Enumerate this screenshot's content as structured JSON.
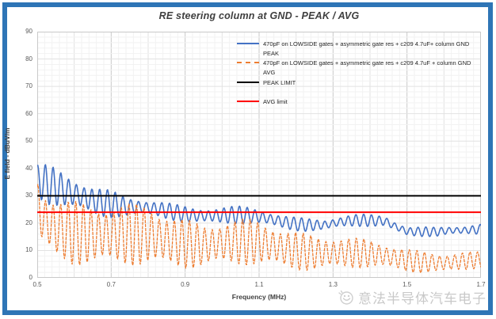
{
  "window": {
    "title": "RE steering column at GND - PEAK / AVG"
  },
  "watermark": {
    "text": "意法半导体汽车电子",
    "logo": "smiley-face-icon",
    "color": "#c9c9c9"
  },
  "colors": {
    "frame_border": "#2E75B6",
    "peak_series": "#4472C4",
    "avg_series": "#ED7D31",
    "peak_limit": "#000000",
    "avg_limit": "#FF0000",
    "grid_minor": "#F2F2F2",
    "grid_major": "#E2E2E2",
    "grid_labeled": "#C9C9C9",
    "plot_border": "#C9C9C9",
    "tick_text": "#595959",
    "title_text": "#3f3f3f"
  },
  "chart_data": {
    "type": "line",
    "title": "RE steering column at GND - PEAK / AVG",
    "xlabel": "Frequency (MHz)",
    "ylabel": "E field - dBuV/m",
    "xlim": [
      0.5,
      1.7
    ],
    "ylim": [
      0,
      90
    ],
    "x_ticks": [
      0.5,
      0.7,
      0.9,
      1.1,
      1.3,
      1.5,
      1.7
    ],
    "y_ticks": [
      0,
      10,
      20,
      30,
      40,
      50,
      60,
      70,
      80,
      90
    ],
    "grid": {
      "minor_x_step": 0.02,
      "major_x_step": 0.1,
      "labeled_x_step": 0.2,
      "minor_y_step": 2,
      "major_y_step": 10,
      "grid_on": true
    },
    "legend_position": "top-right-inside",
    "limits": [
      {
        "name": "PEAK LIMIT",
        "value": 30,
        "color": "#000000"
      },
      {
        "name": "AVG limit",
        "value": 24,
        "color": "#FF0000"
      }
    ],
    "series": [
      {
        "name": "470pF on LOWSIDE gates + asymmetric gate res + c209 4.7uF+ column GND PEAK",
        "short_name": "PEAK",
        "color": "#4472C4",
        "style": "solid",
        "oscillation_period_mhz": 0.021,
        "phase": 1.3,
        "amp_mod": {
          "freq": 37,
          "phase": 0.7,
          "depth": 0.22
        },
        "mid_mod": {
          "freq": 23,
          "phase": 2.1,
          "amount": 0.8
        },
        "envelope_x_lo_hi": [
          [
            0.5,
            28.0,
            41.5
          ],
          [
            0.53,
            26.0,
            40.5
          ],
          [
            0.57,
            25.0,
            38.5
          ],
          [
            0.62,
            24.0,
            36.5
          ],
          [
            0.66,
            23.0,
            34.5
          ],
          [
            0.7,
            22.5,
            32.5
          ],
          [
            0.74,
            22.0,
            29.5
          ],
          [
            0.8,
            21.5,
            28.0
          ],
          [
            0.88,
            21.0,
            27.0
          ],
          [
            0.97,
            20.0,
            26.5
          ],
          [
            1.05,
            19.0,
            25.5
          ],
          [
            1.12,
            18.5,
            24.5
          ],
          [
            1.2,
            18.0,
            23.0
          ],
          [
            1.28,
            17.0,
            21.5
          ],
          [
            1.36,
            18.0,
            22.5
          ],
          [
            1.44,
            19.0,
            23.5
          ],
          [
            1.5,
            16.0,
            19.5
          ],
          [
            1.58,
            14.5,
            18.0
          ],
          [
            1.65,
            15.0,
            18.5
          ],
          [
            1.7,
            16.0,
            20.0
          ]
        ]
      },
      {
        "name": "470pF on LOWSIDE gates + asymmetric gate res + c209 4.7uF + column GND AVG",
        "short_name": "AVG",
        "color": "#ED7D31",
        "style": "dashed",
        "oscillation_period_mhz": 0.0205,
        "phase": 1.0,
        "amp_mod": {
          "freq": 41,
          "phase": 1.9,
          "depth": 0.18
        },
        "mid_mod": {
          "freq": 19,
          "phase": 0.4,
          "amount": 0.6
        },
        "envelope_x_lo_hi": [
          [
            0.5,
            14.0,
            38.0
          ],
          [
            0.52,
            10.0,
            33.0
          ],
          [
            0.55,
            7.0,
            30.5
          ],
          [
            0.6,
            5.0,
            28.5
          ],
          [
            0.65,
            4.0,
            27.0
          ],
          [
            0.72,
            4.0,
            26.5
          ],
          [
            0.8,
            4.0,
            27.0
          ],
          [
            0.88,
            4.0,
            23.0
          ],
          [
            0.95,
            4.0,
            20.0
          ],
          [
            1.02,
            4.0,
            21.0
          ],
          [
            1.1,
            4.0,
            21.0
          ],
          [
            1.18,
            3.5,
            18.0
          ],
          [
            1.26,
            3.0,
            16.0
          ],
          [
            1.34,
            3.0,
            14.5
          ],
          [
            1.42,
            3.0,
            13.0
          ],
          [
            1.5,
            2.5,
            11.0
          ],
          [
            1.6,
            2.0,
            9.5
          ],
          [
            1.7,
            3.0,
            9.0
          ]
        ]
      }
    ],
    "legend": [
      {
        "label": "470pF on LOWSIDE gates + asymmetric gate res + c209 4.7uF+ column GND PEAK",
        "color": "#4472C4",
        "dash": "solid",
        "gap_before": false
      },
      {
        "label": "470pF on LOWSIDE gates + asymmetric gate res + c209 4.7uF + column GND AVG",
        "color": "#ED7D31",
        "dash": "dashed",
        "gap_before": false
      },
      {
        "label": "PEAK LIMIT",
        "color": "#000000",
        "dash": "solid",
        "gap_before": false
      },
      {
        "label": "AVG limit",
        "color": "#FF0000",
        "dash": "solid",
        "gap_before": true
      }
    ]
  }
}
